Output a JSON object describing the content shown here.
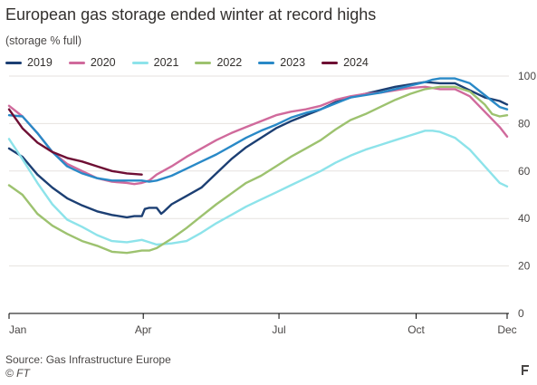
{
  "header": {
    "title": "European gas storage ended winter at record highs",
    "subtitle": "(storage % full)"
  },
  "footer": {
    "source": "Source: Gas Infrastructure Europe",
    "credit": "© FT"
  },
  "chart_data": {
    "type": "line",
    "title": "European gas storage ended winter at record highs",
    "subtitle": "(storage % full)",
    "xlabel": "",
    "ylabel": "",
    "x_unit": "day of year",
    "xlim": [
      1,
      335
    ],
    "ylim": [
      0,
      100
    ],
    "x_ticks": [
      {
        "x": 1,
        "label": "Jan"
      },
      {
        "x": 91,
        "label": "Apr"
      },
      {
        "x": 182,
        "label": "Jul"
      },
      {
        "x": 274,
        "label": "Oct"
      },
      {
        "x": 335,
        "label": "Dec"
      }
    ],
    "y_ticks": [
      0,
      20,
      40,
      60,
      80,
      100
    ],
    "y_axis_position": "right",
    "grid": "horizontal",
    "legend_position": "top",
    "series": [
      {
        "name": "2019",
        "color": "#1c3f73",
        "x": [
          1,
          10,
          20,
          30,
          40,
          50,
          60,
          70,
          80,
          85,
          90,
          92,
          95,
          100,
          103,
          105,
          110,
          120,
          130,
          140,
          150,
          160,
          170,
          180,
          190,
          200,
          210,
          220,
          230,
          240,
          250,
          260,
          270,
          280,
          290,
          300,
          310,
          320,
          330,
          335
        ],
        "y": [
          69.5,
          66,
          58.5,
          53,
          48.5,
          45.5,
          43,
          41.5,
          40.5,
          41,
          41,
          44,
          44.5,
          44.5,
          42,
          43,
          46,
          49.5,
          53,
          59,
          65,
          70,
          74,
          78,
          81,
          83.5,
          86,
          89,
          91,
          92.5,
          94,
          95.5,
          96.5,
          97.5,
          97,
          97,
          94,
          91,
          89.5,
          88
        ]
      },
      {
        "name": "2020",
        "color": "#d06a9c",
        "x": [
          1,
          10,
          20,
          30,
          40,
          50,
          60,
          70,
          80,
          85,
          90,
          95,
          100,
          110,
          120,
          130,
          140,
          150,
          160,
          170,
          180,
          190,
          200,
          210,
          220,
          230,
          240,
          250,
          260,
          270,
          280,
          290,
          300,
          310,
          320,
          330,
          335
        ],
        "y": [
          87.5,
          83,
          76,
          68,
          63,
          60,
          57,
          55.5,
          55,
          54.5,
          55,
          56,
          58.5,
          62,
          66,
          69.5,
          73,
          76,
          78.5,
          81,
          83.5,
          85,
          86,
          87.5,
          90,
          91.5,
          92.5,
          93,
          94,
          95,
          95.5,
          94.5,
          94.5,
          91.5,
          85,
          78.5,
          74.5
        ]
      },
      {
        "name": "2021",
        "color": "#8de3ea",
        "x": [
          1,
          10,
          20,
          30,
          40,
          50,
          60,
          70,
          80,
          90,
          95,
          100,
          110,
          120,
          130,
          140,
          150,
          160,
          170,
          180,
          190,
          200,
          210,
          220,
          230,
          240,
          250,
          260,
          270,
          280,
          285,
          290,
          300,
          310,
          320,
          330,
          335
        ],
        "y": [
          73.5,
          65,
          55,
          46,
          39.5,
          36.5,
          33,
          30.5,
          30,
          31,
          30,
          29,
          29.5,
          30.5,
          34,
          38,
          41.5,
          45,
          48,
          51,
          54,
          57,
          60,
          63.5,
          66.5,
          69,
          71,
          73,
          75,
          77,
          77,
          76.5,
          74,
          69,
          62,
          55,
          53.5
        ]
      },
      {
        "name": "2022",
        "color": "#9dc26f",
        "x": [
          1,
          10,
          20,
          30,
          40,
          50,
          60,
          70,
          80,
          85,
          90,
          95,
          100,
          110,
          120,
          130,
          140,
          150,
          160,
          170,
          180,
          190,
          200,
          210,
          220,
          230,
          240,
          250,
          260,
          270,
          280,
          290,
          300,
          310,
          320,
          325,
          330,
          335
        ],
        "y": [
          54,
          50,
          42,
          37,
          33.5,
          30.5,
          28.5,
          26,
          25.5,
          26,
          26.5,
          26.5,
          27.5,
          31.5,
          36,
          41,
          46,
          50.5,
          55,
          58,
          62,
          66,
          69.5,
          73,
          77.5,
          81.5,
          84,
          87,
          90,
          92.5,
          94.5,
          95.5,
          95.5,
          93.5,
          88,
          84,
          83,
          83.5
        ]
      },
      {
        "name": "2023",
        "color": "#2989c7",
        "x": [
          1,
          10,
          20,
          30,
          40,
          50,
          60,
          70,
          80,
          90,
          95,
          100,
          110,
          120,
          130,
          140,
          150,
          160,
          170,
          180,
          190,
          200,
          210,
          220,
          230,
          240,
          250,
          260,
          270,
          280,
          285,
          290,
          300,
          310,
          320,
          330,
          335
        ],
        "y": [
          83.5,
          83,
          76,
          68,
          62,
          59,
          57,
          56,
          56,
          56,
          55.5,
          56,
          58,
          61,
          64,
          67,
          70.5,
          74,
          77,
          79.5,
          82.5,
          84.5,
          86,
          88.5,
          91,
          92,
          93,
          94.5,
          96,
          97.5,
          98.5,
          99,
          99,
          97,
          92,
          87,
          86
        ]
      },
      {
        "name": "2024",
        "color": "#6e0f34",
        "x": [
          1,
          10,
          20,
          30,
          40,
          50,
          60,
          70,
          80,
          90
        ],
        "y": [
          86,
          78,
          72,
          68,
          65.5,
          64,
          62,
          60,
          59,
          58.5
        ]
      }
    ]
  }
}
